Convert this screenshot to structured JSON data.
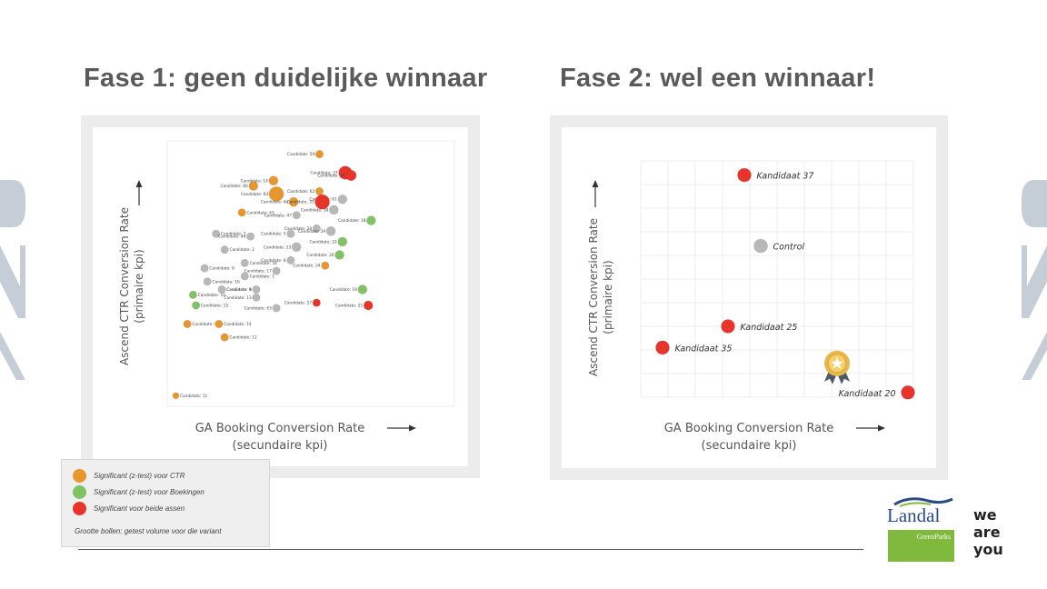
{
  "slide": {
    "title_left": "Fase 1: geen duidelijke winnaar",
    "title_right": "Fase 2: wel een winnaar!"
  },
  "colors": {
    "ctr": "#e8962e",
    "bookings": "#82c264",
    "both": "#e8352b",
    "none": "#b8b8b8"
  },
  "legend": {
    "items": [
      {
        "color": "#e8962e",
        "label": "Significant (z-test) voor CTR"
      },
      {
        "color": "#82c264",
        "label": "Significant (z-test) voor Boekingen"
      },
      {
        "color": "#e8352b",
        "label": "Significant voor beide assen"
      }
    ],
    "note": "Grootte bollen: getest volume voor die variant"
  },
  "brand": {
    "logo_name": "Landal",
    "logo_sub": "GreenParks",
    "tagline": [
      "we",
      "are",
      "you"
    ]
  },
  "chart_data": [
    {
      "type": "scatter",
      "title": "Fase 1: geen duidelijke winnaar",
      "xlabel": "GA Booking Conversion Rate\n(secundaire kpi)",
      "ylabel": "Ascend CTR Conversion Rate\n(primaire kpi)",
      "xlim": [
        0,
        100
      ],
      "ylim": [
        0,
        100
      ],
      "grid": true,
      "points": [
        {
          "label": "Candidate: 59",
          "x": 53,
          "y": 95,
          "size": 3,
          "sig": "ctr"
        },
        {
          "label": "Candidate: 37",
          "x": 62,
          "y": 88,
          "size": 7,
          "sig": "both"
        },
        {
          "label": "Candidate: 39",
          "x": 64,
          "y": 87,
          "size": 5,
          "sig": "both"
        },
        {
          "label": "Candidate: 14",
          "x": 37,
          "y": 85,
          "size": 4,
          "sig": "ctr"
        },
        {
          "label": "Candidate: 60",
          "x": 30,
          "y": 83,
          "size": 4,
          "sig": "ctr"
        },
        {
          "label": "Candidate: 64",
          "x": 38,
          "y": 80,
          "size": 8,
          "sig": "ctr"
        },
        {
          "label": "Candidate: 62",
          "x": 53,
          "y": 81,
          "size": 3,
          "sig": "ctr"
        },
        {
          "label": "Candidate: 61",
          "x": 61,
          "y": 78,
          "size": 4,
          "sig": "none"
        },
        {
          "label": "Candidate: 4a",
          "x": 44,
          "y": 77,
          "size": 4,
          "sig": "ctr"
        },
        {
          "label": "Candidate: 33",
          "x": 54,
          "y": 77,
          "size": 8,
          "sig": "both"
        },
        {
          "label": "Candidate: 38",
          "x": 58,
          "y": 74,
          "size": 4,
          "sig": "none"
        },
        {
          "label": "Candidate: 43",
          "x": 26,
          "y": 73,
          "size": 3,
          "sig": "ctr"
        },
        {
          "label": "Candidate: 47",
          "x": 45,
          "y": 72,
          "size": 3,
          "sig": "none"
        },
        {
          "label": "Candidate: 18",
          "x": 71,
          "y": 70,
          "size": 4,
          "sig": "bookings"
        },
        {
          "label": "Candidate: 28",
          "x": 52,
          "y": 67,
          "size": 3,
          "sig": "none"
        },
        {
          "label": "Candidate: 29",
          "x": 57,
          "y": 66,
          "size": 4,
          "sig": "none"
        },
        {
          "label": "Candidate: 7",
          "x": 17,
          "y": 65,
          "size": 3,
          "sig": "none"
        },
        {
          "label": "Candidate: 5",
          "x": 43,
          "y": 65,
          "size": 3,
          "sig": "none"
        },
        {
          "label": "Candidate: 44",
          "x": 29,
          "y": 64,
          "size": 3,
          "sig": "none"
        },
        {
          "label": "Candidate: 23",
          "x": 45,
          "y": 60,
          "size": 4,
          "sig": "none"
        },
        {
          "label": "Candidate: 22",
          "x": 61,
          "y": 62,
          "size": 4,
          "sig": "bookings"
        },
        {
          "label": "Candidate: 2",
          "x": 20,
          "y": 59,
          "size": 3,
          "sig": "none"
        },
        {
          "label": "Candidate: 26",
          "x": 60,
          "y": 57,
          "size": 4,
          "sig": "bookings"
        },
        {
          "label": "Candidate: 54",
          "x": 27,
          "y": 54,
          "size": 3,
          "sig": "none"
        },
        {
          "label": "Candidate: 8",
          "x": 43,
          "y": 55,
          "size": 3,
          "sig": "none"
        },
        {
          "label": "Candidate: 24",
          "x": 55,
          "y": 53,
          "size": 3,
          "sig": "ctr"
        },
        {
          "label": "Candidate: 6",
          "x": 13,
          "y": 52,
          "size": 3,
          "sig": "none"
        },
        {
          "label": "Candidate: 17",
          "x": 38,
          "y": 51,
          "size": 3,
          "sig": "none"
        },
        {
          "label": "Candidate: 1",
          "x": 27,
          "y": 49,
          "size": 3,
          "sig": "none"
        },
        {
          "label": "Candidate: 16",
          "x": 14,
          "y": 47,
          "size": 3,
          "sig": "none"
        },
        {
          "label": "Candidate: 9",
          "x": 19,
          "y": 44,
          "size": 3,
          "sig": "none"
        },
        {
          "label": "Candidate: 4",
          "x": 31,
          "y": 44,
          "size": 3,
          "sig": "none"
        },
        {
          "label": "Candidate: 19",
          "x": 68,
          "y": 44,
          "size": 4,
          "sig": "bookings"
        },
        {
          "label": "Candidate: 10",
          "x": 9,
          "y": 42,
          "size": 3,
          "sig": "bookings"
        },
        {
          "label": "Candidate: 13",
          "x": 31,
          "y": 41,
          "size": 3,
          "sig": "none"
        },
        {
          "label": "Candidate: 15",
          "x": 10,
          "y": 38,
          "size": 3,
          "sig": "bookings"
        },
        {
          "label": "Candidate: 27",
          "x": 52,
          "y": 39,
          "size": 3,
          "sig": "both"
        },
        {
          "label": "Candidate: 63",
          "x": 38,
          "y": 37,
          "size": 3,
          "sig": "none"
        },
        {
          "label": "Candidate: 21",
          "x": 70,
          "y": 38,
          "size": 4,
          "sig": "both"
        },
        {
          "label": "Candidate: 3",
          "x": 7,
          "y": 31,
          "size": 3,
          "sig": "ctr"
        },
        {
          "label": "Candidate: 14",
          "x": 18,
          "y": 31,
          "size": 3,
          "sig": "ctr"
        },
        {
          "label": "Candidate: 12",
          "x": 20,
          "y": 26,
          "size": 3,
          "sig": "ctr"
        },
        {
          "label": "Candidate: 11",
          "x": 3,
          "y": 4,
          "size": 2,
          "sig": "ctr"
        }
      ]
    },
    {
      "type": "scatter",
      "title": "Fase 2: wel een winnaar!",
      "xlabel": "GA Booking Conversion Rate\n(secundaire kpi)",
      "ylabel": "Ascend CTR Conversion Rate\n(primaire kpi)",
      "xlim": [
        0,
        100
      ],
      "ylim": [
        0,
        100
      ],
      "grid": true,
      "points": [
        {
          "label": "Kandidaat 37",
          "x": 38,
          "y": 94,
          "sig": "both"
        },
        {
          "label": "Control",
          "x": 44,
          "y": 64,
          "sig": "none"
        },
        {
          "label": "Kandidaat 25",
          "x": 32,
          "y": 30,
          "sig": "both"
        },
        {
          "label": "Kandidaat 35",
          "x": 8,
          "y": 21,
          "sig": "both"
        },
        {
          "label": "Kandidaat 20",
          "x": 98,
          "y": 2,
          "sig": "both",
          "winner": true
        }
      ]
    }
  ]
}
